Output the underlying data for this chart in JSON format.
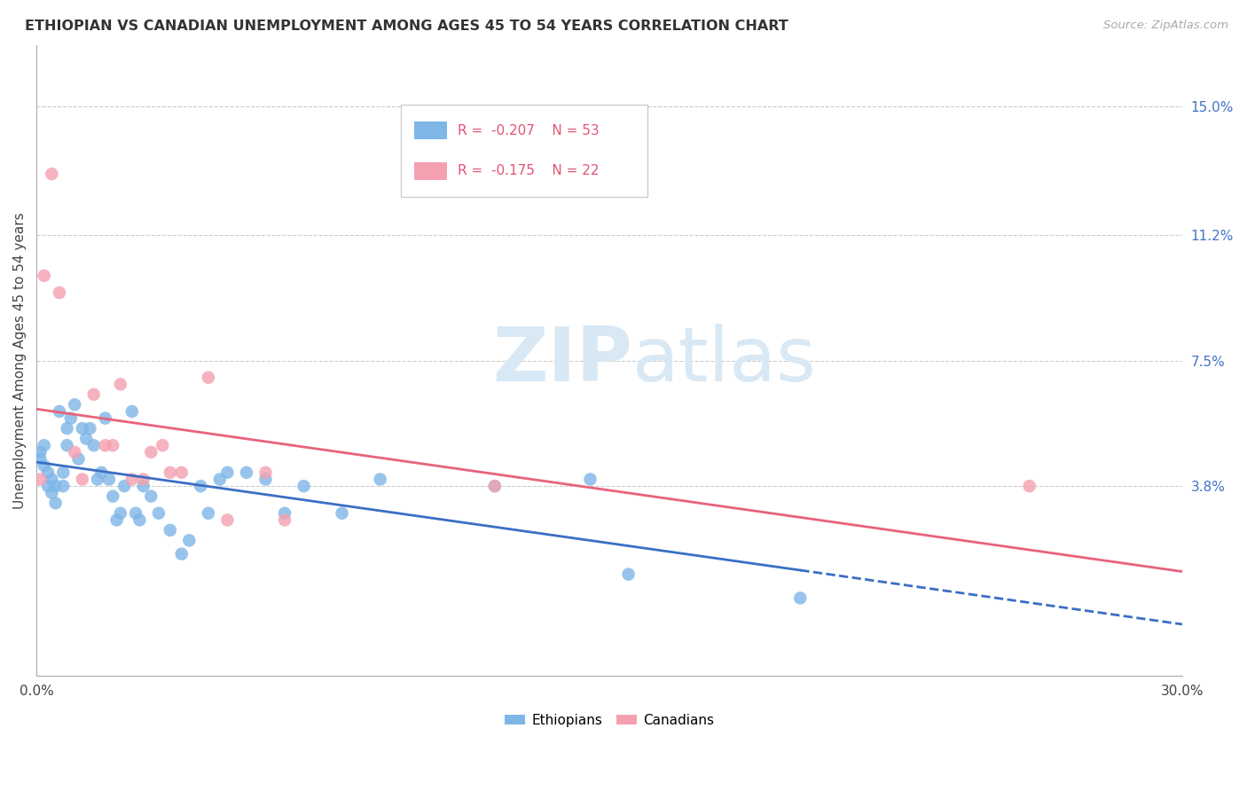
{
  "title": "ETHIOPIAN VS CANADIAN UNEMPLOYMENT AMONG AGES 45 TO 54 YEARS CORRELATION CHART",
  "source": "Source: ZipAtlas.com",
  "ylabel": "Unemployment Among Ages 45 to 54 years",
  "xlim": [
    0.0,
    0.3
  ],
  "ylim": [
    -0.018,
    0.168
  ],
  "xtick_positions": [
    0.0,
    0.05,
    0.1,
    0.15,
    0.2,
    0.25,
    0.3
  ],
  "xticklabels": [
    "0.0%",
    "",
    "",
    "",
    "",
    "",
    "30.0%"
  ],
  "right_yticks": [
    0.038,
    0.075,
    0.112,
    0.15
  ],
  "right_yticklabels": [
    "3.8%",
    "7.5%",
    "11.2%",
    "15.0%"
  ],
  "legend_r1": "R =  -0.207",
  "legend_n1": "N = 53",
  "legend_r2": "R =  -0.175",
  "legend_n2": "N = 22",
  "ethiopian_color": "#7EB6E8",
  "canadian_color": "#F4A0B0",
  "trendline_eth_color": "#3A6FC4",
  "trendline_can_color": "#E8637A",
  "background_color": "#FFFFFF",
  "watermark_zip": "ZIP",
  "watermark_atlas": "atlas",
  "eth_x": [
    0.001,
    0.001,
    0.002,
    0.002,
    0.003,
    0.003,
    0.004,
    0.004,
    0.005,
    0.005,
    0.006,
    0.007,
    0.007,
    0.008,
    0.008,
    0.009,
    0.01,
    0.011,
    0.012,
    0.013,
    0.014,
    0.015,
    0.016,
    0.017,
    0.018,
    0.019,
    0.02,
    0.021,
    0.022,
    0.023,
    0.025,
    0.026,
    0.027,
    0.028,
    0.03,
    0.032,
    0.035,
    0.038,
    0.04,
    0.043,
    0.045,
    0.048,
    0.05,
    0.055,
    0.06,
    0.065,
    0.07,
    0.08,
    0.09,
    0.12,
    0.145,
    0.155,
    0.2
  ],
  "eth_y": [
    0.048,
    0.046,
    0.044,
    0.05,
    0.038,
    0.042,
    0.04,
    0.036,
    0.033,
    0.038,
    0.06,
    0.038,
    0.042,
    0.05,
    0.055,
    0.058,
    0.062,
    0.046,
    0.055,
    0.052,
    0.055,
    0.05,
    0.04,
    0.042,
    0.058,
    0.04,
    0.035,
    0.028,
    0.03,
    0.038,
    0.06,
    0.03,
    0.028,
    0.038,
    0.035,
    0.03,
    0.025,
    0.018,
    0.022,
    0.038,
    0.03,
    0.04,
    0.042,
    0.042,
    0.04,
    0.03,
    0.038,
    0.03,
    0.04,
    0.038,
    0.04,
    0.012,
    0.005
  ],
  "can_x": [
    0.001,
    0.002,
    0.004,
    0.006,
    0.01,
    0.012,
    0.015,
    0.018,
    0.02,
    0.022,
    0.025,
    0.028,
    0.03,
    0.033,
    0.035,
    0.038,
    0.045,
    0.05,
    0.06,
    0.065,
    0.12,
    0.26
  ],
  "can_y": [
    0.04,
    0.1,
    0.13,
    0.095,
    0.048,
    0.04,
    0.065,
    0.05,
    0.05,
    0.068,
    0.04,
    0.04,
    0.048,
    0.05,
    0.042,
    0.042,
    0.07,
    0.028,
    0.042,
    0.028,
    0.038,
    0.038
  ]
}
